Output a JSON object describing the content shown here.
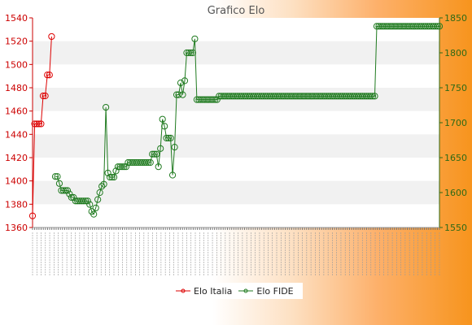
{
  "chart_data": {
    "type": "line",
    "title": "Grafico Elo",
    "legend_position": "bottom",
    "grid": true,
    "y_left": {
      "min": 1360,
      "max": 1540,
      "ticks": [
        1360,
        1380,
        1400,
        1420,
        1440,
        1460,
        1480,
        1500,
        1520,
        1540
      ]
    },
    "y_right": {
      "min": 1550,
      "max": 1850,
      "ticks": [
        1550,
        1600,
        1650,
        1700,
        1750,
        1800,
        1850
      ]
    },
    "colors": {
      "italia": "#dd0000",
      "fide": "#1f7a1f",
      "grid_band": "#f1f1f1",
      "left_axis": "#cc0000",
      "right_axis": "#2d6a16"
    },
    "series": [
      {
        "name": "Elo Italia",
        "axis": "left",
        "values": [
          1370,
          1449,
          1449,
          1449,
          1449,
          1473,
          1473,
          1491,
          1491,
          1524
        ]
      },
      {
        "name": "Elo FIDE",
        "axis": "right",
        "values": [
          1623,
          1623,
          1613,
          1603,
          1603,
          1603,
          1603,
          1598,
          1593,
          1593,
          1588,
          1588,
          1588,
          1588,
          1588,
          1588,
          1588,
          1583,
          1573,
          1569,
          1578,
          1590,
          1600,
          1609,
          1612,
          1722,
          1628,
          1622,
          1622,
          1622,
          1631,
          1637,
          1637,
          1637,
          1637,
          1637,
          1643,
          1643,
          1643,
          1643,
          1643,
          1643,
          1643,
          1643,
          1643,
          1643,
          1643,
          1643,
          1655,
          1655,
          1655,
          1637,
          1663,
          1705,
          1695,
          1678,
          1678,
          1678,
          1625,
          1665,
          1740,
          1740,
          1757,
          1740,
          1760,
          1800,
          1800,
          1800,
          1800,
          1820,
          1733,
          1733,
          1733,
          1733,
          1733,
          1733,
          1733,
          1733,
          1733,
          1733,
          1733,
          1738,
          1738,
          1738,
          1738,
          1738,
          1738,
          1738,
          1738,
          1738,
          1738,
          1738,
          1738,
          1738,
          1738,
          1738,
          1738,
          1738,
          1738,
          1738,
          1738,
          1738,
          1738,
          1738,
          1738,
          1738,
          1738,
          1738,
          1738,
          1738,
          1738,
          1738,
          1738,
          1738,
          1738,
          1738,
          1738,
          1738,
          1738,
          1738,
          1738,
          1738,
          1738,
          1738,
          1738,
          1738,
          1738,
          1738,
          1738,
          1738,
          1738,
          1738,
          1738,
          1738,
          1738,
          1738,
          1738,
          1738,
          1738,
          1738,
          1738,
          1738,
          1738,
          1738,
          1738,
          1738,
          1738,
          1738,
          1738,
          1738,
          1738,
          1738,
          1738,
          1738,
          1738,
          1738,
          1738,
          1738,
          1738,
          1838,
          1838,
          1838,
          1838,
          1838,
          1838,
          1838,
          1838,
          1838,
          1838,
          1838,
          1838,
          1838,
          1838,
          1838,
          1838,
          1838,
          1838,
          1838,
          1838,
          1838,
          1838,
          1838,
          1838,
          1838,
          1838,
          1838,
          1838,
          1838,
          1838,
          1838,
          1838
        ]
      }
    ]
  }
}
